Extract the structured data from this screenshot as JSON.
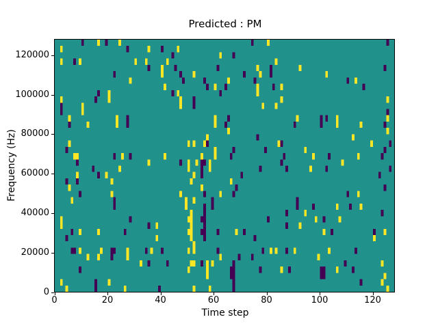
{
  "chart_data": {
    "type": "heatmap",
    "title": "Predicted : PM",
    "xlabel": "Time step",
    "ylabel": "Frequency (Hz)",
    "colormap": "viridis",
    "x_range": [
      0,
      128
    ],
    "y_range": [
      0,
      128000
    ],
    "x_ticks": [
      0,
      20,
      40,
      60,
      80,
      100,
      120
    ],
    "y_ticks": [
      0,
      20000,
      40000,
      60000,
      80000,
      100000,
      120000
    ],
    "grid": {
      "cols": 128,
      "rows": 40,
      "row_origin": "top"
    },
    "colors": {
      "background_value": "#21918c",
      "high_value": "#fde725",
      "low_value": "#440154",
      "axis": "#000000",
      "figure_background": "#ffffff"
    },
    "cells_high": [
      [
        16,
        0
      ],
      [
        24,
        0
      ],
      [
        80,
        0
      ],
      [
        2,
        1
      ],
      [
        35,
        1
      ],
      [
        46,
        1
      ],
      [
        62,
        2
      ],
      [
        2,
        3
      ],
      [
        9,
        3
      ],
      [
        30,
        3
      ],
      [
        34,
        3
      ],
      [
        42,
        3
      ],
      [
        83,
        3
      ],
      [
        40,
        4
      ],
      [
        76,
        4
      ],
      [
        92,
        4
      ],
      [
        40,
        5
      ],
      [
        52,
        5
      ],
      [
        77,
        5
      ],
      [
        102,
        5
      ],
      [
        28,
        6
      ],
      [
        65,
        6
      ],
      [
        113,
        6
      ],
      [
        41,
        7
      ],
      [
        60,
        7
      ],
      [
        76,
        7
      ],
      [
        85,
        7
      ],
      [
        20,
        8
      ],
      [
        46,
        8
      ],
      [
        76,
        8
      ],
      [
        2,
        9
      ],
      [
        20,
        9
      ],
      [
        47,
        9
      ],
      [
        85,
        9
      ],
      [
        125,
        9
      ],
      [
        10,
        10
      ],
      [
        47,
        10
      ],
      [
        78,
        10
      ],
      [
        83,
        10
      ],
      [
        10,
        11
      ],
      [
        5,
        12
      ],
      [
        23,
        12
      ],
      [
        60,
        12
      ],
      [
        91,
        12
      ],
      [
        106,
        12
      ],
      [
        125,
        12
      ],
      [
        12,
        13
      ],
      [
        23,
        13
      ],
      [
        60,
        13
      ],
      [
        106,
        13
      ],
      [
        115,
        13
      ],
      [
        65,
        14
      ],
      [
        125,
        14
      ],
      [
        57,
        15
      ],
      [
        112,
        15
      ],
      [
        5,
        16
      ],
      [
        50,
        16
      ],
      [
        52,
        16
      ],
      [
        56,
        16
      ],
      [
        84,
        16
      ],
      [
        119,
        16
      ],
      [
        60,
        17
      ],
      [
        94,
        17
      ],
      [
        7,
        18
      ],
      [
        8,
        18
      ],
      [
        25,
        18
      ],
      [
        41,
        18
      ],
      [
        55,
        18
      ],
      [
        60,
        18
      ],
      [
        97,
        18
      ],
      [
        114,
        18
      ],
      [
        35,
        19
      ],
      [
        50,
        19
      ],
      [
        53,
        19
      ],
      [
        58,
        19
      ],
      [
        108,
        19
      ],
      [
        24,
        20
      ],
      [
        50,
        20
      ],
      [
        58,
        20
      ],
      [
        96,
        20
      ],
      [
        8,
        21
      ],
      [
        19,
        21
      ],
      [
        52,
        21
      ],
      [
        21,
        22
      ],
      [
        51,
        22
      ],
      [
        66,
        22
      ],
      [
        5,
        23
      ],
      [
        55,
        23
      ],
      [
        21,
        24
      ],
      [
        47,
        24
      ],
      [
        62,
        24
      ],
      [
        114,
        24
      ],
      [
        6,
        25
      ],
      [
        49,
        25
      ],
      [
        52,
        25
      ],
      [
        49,
        26
      ],
      [
        106,
        26
      ],
      [
        115,
        26
      ],
      [
        51,
        27
      ],
      [
        94,
        27
      ],
      [
        2,
        28
      ],
      [
        50,
        28
      ],
      [
        51,
        28
      ],
      [
        98,
        28
      ],
      [
        107,
        28
      ],
      [
        2,
        29
      ],
      [
        38,
        29
      ],
      [
        51,
        29
      ],
      [
        92,
        29
      ],
      [
        9,
        30
      ],
      [
        16,
        30
      ],
      [
        50,
        30
      ],
      [
        51,
        30
      ],
      [
        68,
        30
      ],
      [
        101,
        30
      ],
      [
        124,
        30
      ],
      [
        38,
        31
      ],
      [
        51,
        31
      ],
      [
        120,
        31
      ],
      [
        52,
        32
      ],
      [
        9,
        33
      ],
      [
        17,
        33
      ],
      [
        27,
        33
      ],
      [
        36,
        33
      ],
      [
        50,
        33
      ],
      [
        52,
        33
      ],
      [
        81,
        33
      ],
      [
        83,
        33
      ],
      [
        90,
        33
      ],
      [
        103,
        33
      ],
      [
        12,
        34
      ],
      [
        16,
        34
      ],
      [
        27,
        34
      ],
      [
        62,
        34
      ],
      [
        99,
        34
      ],
      [
        32,
        35
      ],
      [
        51,
        35
      ],
      [
        52,
        35
      ],
      [
        57,
        35
      ],
      [
        59,
        35
      ],
      [
        123,
        35
      ],
      [
        50,
        36
      ],
      [
        57,
        36
      ],
      [
        85,
        36
      ],
      [
        106,
        36
      ],
      [
        57,
        37
      ],
      [
        124,
        37
      ],
      [
        2,
        38
      ],
      [
        20,
        38
      ],
      [
        123,
        38
      ],
      [
        4,
        39
      ],
      [
        26,
        39
      ],
      [
        52,
        39
      ],
      [
        58,
        39
      ],
      [
        125,
        39
      ]
    ],
    "cells_low": [
      [
        10,
        0
      ],
      [
        19,
        0
      ],
      [
        74,
        0
      ],
      [
        125,
        0
      ],
      [
        27,
        1
      ],
      [
        40,
        1
      ],
      [
        44,
        2
      ],
      [
        67,
        2
      ],
      [
        7,
        3
      ],
      [
        35,
        4
      ],
      [
        45,
        4
      ],
      [
        61,
        4
      ],
      [
        81,
        4
      ],
      [
        124,
        4
      ],
      [
        22,
        5
      ],
      [
        47,
        5
      ],
      [
        71,
        5
      ],
      [
        81,
        5
      ],
      [
        48,
        6
      ],
      [
        56,
        6
      ],
      [
        75,
        6
      ],
      [
        110,
        6
      ],
      [
        57,
        7
      ],
      [
        64,
        7
      ],
      [
        82,
        7
      ],
      [
        116,
        7
      ],
      [
        16,
        8
      ],
      [
        44,
        8
      ],
      [
        62,
        8
      ],
      [
        15,
        9
      ],
      [
        52,
        9
      ],
      [
        2,
        10
      ],
      [
        52,
        10
      ],
      [
        2,
        11
      ],
      [
        125,
        11
      ],
      [
        27,
        12
      ],
      [
        65,
        12
      ],
      [
        100,
        12
      ],
      [
        102,
        12
      ],
      [
        5,
        13
      ],
      [
        27,
        13
      ],
      [
        64,
        13
      ],
      [
        90,
        13
      ],
      [
        100,
        13
      ],
      [
        124,
        13
      ],
      [
        76,
        15
      ],
      [
        57,
        16
      ],
      [
        85,
        16
      ],
      [
        126,
        16
      ],
      [
        4,
        17
      ],
      [
        67,
        17
      ],
      [
        79,
        17
      ],
      [
        124,
        17
      ],
      [
        22,
        18
      ],
      [
        28,
        18
      ],
      [
        66,
        18
      ],
      [
        86,
        18
      ],
      [
        103,
        18
      ],
      [
        123,
        18
      ],
      [
        8,
        19
      ],
      [
        47,
        19
      ],
      [
        55,
        19
      ],
      [
        56,
        19
      ],
      [
        85,
        19
      ],
      [
        14,
        20
      ],
      [
        55,
        20
      ],
      [
        77,
        20
      ],
      [
        87,
        20
      ],
      [
        102,
        20
      ],
      [
        126,
        20
      ],
      [
        16,
        21
      ],
      [
        55,
        21
      ],
      [
        70,
        21
      ],
      [
        122,
        21
      ],
      [
        4,
        22
      ],
      [
        8,
        22
      ],
      [
        68,
        23
      ],
      [
        124,
        23
      ],
      [
        9,
        24
      ],
      [
        56,
        24
      ],
      [
        67,
        24
      ],
      [
        110,
        24
      ],
      [
        22,
        25
      ],
      [
        59,
        25
      ],
      [
        91,
        25
      ],
      [
        22,
        26
      ],
      [
        56,
        26
      ],
      [
        59,
        26
      ],
      [
        91,
        26
      ],
      [
        97,
        26
      ],
      [
        111,
        26
      ],
      [
        56,
        27
      ],
      [
        87,
        27
      ],
      [
        123,
        27
      ],
      [
        28,
        28
      ],
      [
        55,
        28
      ],
      [
        56,
        28
      ],
      [
        80,
        28
      ],
      [
        101,
        28
      ],
      [
        35,
        29
      ],
      [
        56,
        29
      ],
      [
        87,
        29
      ],
      [
        6,
        30
      ],
      [
        26,
        30
      ],
      [
        55,
        30
      ],
      [
        56,
        30
      ],
      [
        61,
        30
      ],
      [
        71,
        30
      ],
      [
        104,
        30
      ],
      [
        120,
        30
      ],
      [
        4,
        31
      ],
      [
        56,
        31
      ],
      [
        75,
        31
      ],
      [
        6,
        33
      ],
      [
        7,
        33
      ],
      [
        21,
        33
      ],
      [
        22,
        33
      ],
      [
        34,
        33
      ],
      [
        40,
        33
      ],
      [
        61,
        33
      ],
      [
        78,
        33
      ],
      [
        87,
        33
      ],
      [
        113,
        33
      ],
      [
        21,
        34
      ],
      [
        69,
        34
      ],
      [
        74,
        34
      ],
      [
        35,
        35
      ],
      [
        42,
        35
      ],
      [
        55,
        35
      ],
      [
        67,
        35
      ],
      [
        109,
        35
      ],
      [
        9,
        36
      ],
      [
        66,
        36
      ],
      [
        67,
        36
      ],
      [
        77,
        36
      ],
      [
        88,
        36
      ],
      [
        100,
        36
      ],
      [
        101,
        36
      ],
      [
        112,
        36
      ],
      [
        66,
        37
      ],
      [
        67,
        37
      ],
      [
        100,
        37
      ],
      [
        101,
        37
      ],
      [
        15,
        38
      ],
      [
        67,
        38
      ],
      [
        115,
        38
      ],
      [
        15,
        39
      ],
      [
        39,
        39
      ],
      [
        67,
        39
      ]
    ]
  }
}
